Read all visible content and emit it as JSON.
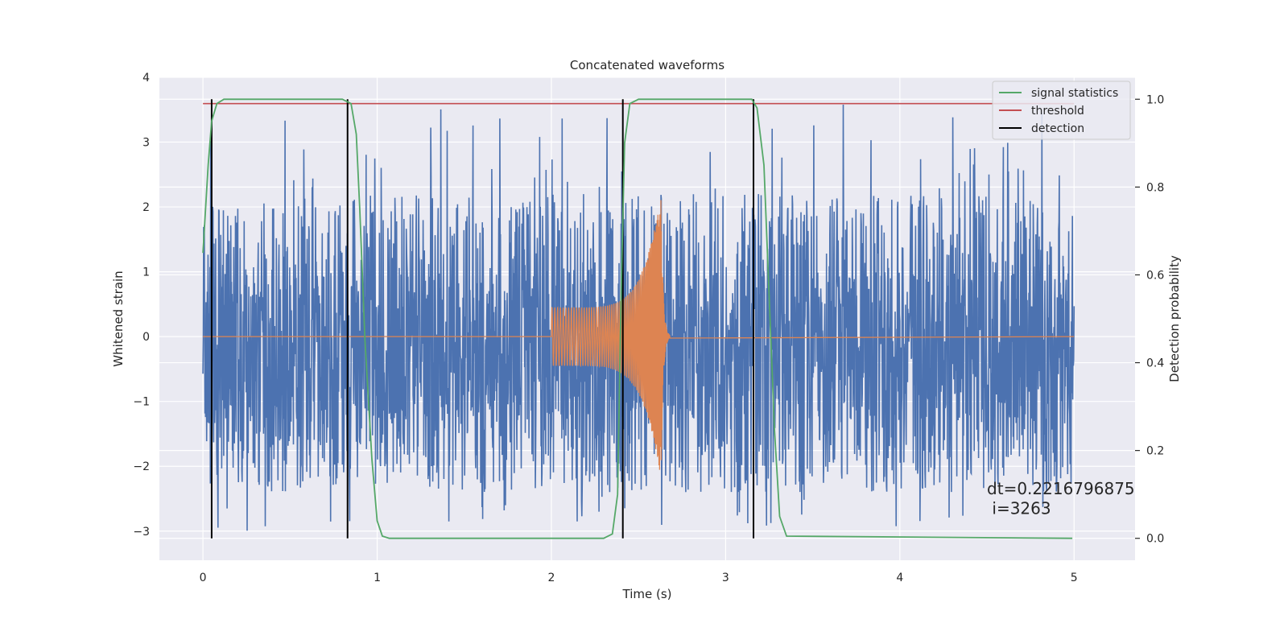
{
  "chart_data": {
    "type": "line",
    "title": "Concatenated waveforms",
    "xlabel": "Time (s)",
    "ylabel": "Whitened strain",
    "ylabel_right": "Detection probability",
    "xlim": [
      -0.25,
      5.35
    ],
    "ylim": [
      -3.45,
      4.0
    ],
    "ylim_right": [
      -0.05,
      1.05
    ],
    "xticks": [
      0,
      1,
      2,
      3,
      4,
      5
    ],
    "yticks": [
      -3,
      -2,
      -1,
      0,
      1,
      2,
      3,
      4
    ],
    "yticks_right": [
      0.0,
      0.2,
      0.4,
      0.6,
      0.8,
      1.0
    ],
    "xtick_labels": [
      "0",
      "1",
      "2",
      "3",
      "4",
      "5"
    ],
    "ytick_labels": [
      "−3",
      "−2",
      "−1",
      "0",
      "1",
      "2",
      "3",
      "4"
    ],
    "ytick_right_labels": [
      "0.0",
      "0.2",
      "0.4",
      "0.6",
      "0.8",
      "1.0"
    ],
    "grid": true,
    "legend_position": "top-right",
    "legend": [
      {
        "label": "signal statistics",
        "color": "#55a868"
      },
      {
        "label": "threshold",
        "color": "#c44e52"
      },
      {
        "label": "detection",
        "color": "#000000"
      }
    ],
    "colors": {
      "noise": "#4c72b0",
      "chirp": "#dd8452",
      "signal_statistics": "#55a868",
      "threshold": "#c44e52",
      "detection": "#000000",
      "plot_background": "#eaeaf2",
      "grid": "#ffffff"
    },
    "noise_series": {
      "x_range": [
        0,
        5
      ],
      "band_range": [
        -1.35,
        1.0
      ],
      "spike_range": [
        -3.0,
        3.65
      ]
    },
    "chirp_series": {
      "x_range": [
        2.0,
        2.68
      ],
      "peak_time": 2.63,
      "amplitude_start": 0.45,
      "amplitude_peak": 2.2
    },
    "threshold": 0.99,
    "detections": [
      0.05,
      0.83,
      2.41,
      3.16
    ],
    "signal_statistics": {
      "x": [
        0.0,
        0.03,
        0.05,
        0.08,
        0.12,
        0.2,
        0.8,
        0.85,
        0.88,
        0.9,
        0.93,
        0.97,
        1.0,
        1.03,
        1.07,
        1.2,
        2.3,
        2.35,
        2.38,
        2.4,
        2.42,
        2.45,
        2.5,
        2.6,
        3.15,
        3.18,
        3.22,
        3.25,
        3.28,
        3.31,
        3.35,
        4.99
      ],
      "y": [
        0.65,
        0.85,
        0.95,
        0.99,
        1.0,
        1.0,
        1.0,
        0.99,
        0.92,
        0.75,
        0.45,
        0.18,
        0.04,
        0.005,
        0.0,
        0.0,
        0.0,
        0.01,
        0.1,
        0.55,
        0.9,
        0.99,
        1.0,
        1.0,
        1.0,
        0.98,
        0.85,
        0.55,
        0.25,
        0.05,
        0.005,
        0.0
      ]
    },
    "annotation": {
      "line1": "dt=0.2216796875",
      "line2": " i=3263",
      "x": 4.5,
      "y1_right": 0.1,
      "y2_right": 0.055
    }
  }
}
